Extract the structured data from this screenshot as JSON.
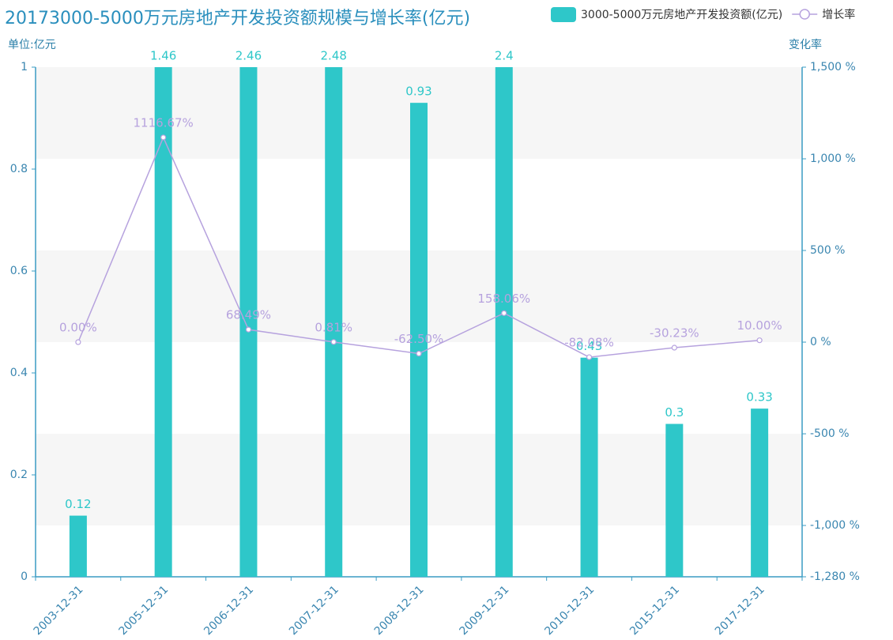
{
  "chart_data": {
    "type": "bar",
    "title": "20173000-5000万元房地产开发投资额规模与增长率(亿元)",
    "y_label": "单位:亿元",
    "y2_label": "变化率",
    "categories": [
      "2003-12-31",
      "2005-12-31",
      "2006-12-31",
      "2007-12-31",
      "2008-12-31",
      "2009-12-31",
      "2010-12-31",
      "2015-12-31",
      "2017-12-31"
    ],
    "series": [
      {
        "name": "3000-5000万元房地产开发投资额(亿元)",
        "type": "bar",
        "color": "#2ec7c9",
        "values": [
          0.12,
          1.46,
          2.46,
          2.48,
          0.93,
          2.4,
          0.43,
          0.3,
          0.33
        ]
      },
      {
        "name": "增长率",
        "type": "line",
        "axis": "y2",
        "color": "#b6a2de",
        "values": [
          0,
          1116.67,
          68.49,
          0.81,
          -62.5,
          158.06,
          -82.08,
          -30.23,
          10
        ],
        "value_labels": [
          "0.00%",
          "1116.67%",
          "68.49%",
          "0.81%",
          "-62.50%",
          "158.06%",
          "-82.08%",
          "-30.23%",
          "10.00%"
        ]
      }
    ],
    "ylim": [
      0,
      1
    ],
    "yticks": [
      0,
      0.2,
      0.4,
      0.6,
      0.8,
      1
    ],
    "y2lim": [
      -1280,
      1500
    ],
    "y2ticks": [
      {
        "value": -1280,
        "label": "-1,280 %"
      },
      {
        "value": -1000,
        "label": "-1,000 %"
      },
      {
        "value": -500,
        "label": "-500 %"
      },
      {
        "value": 0,
        "label": "0 %"
      },
      {
        "value": 500,
        "label": "500 %"
      },
      {
        "value": 1000,
        "label": "1,000 %"
      },
      {
        "value": 1500,
        "label": "1,500 %"
      }
    ],
    "legend": "top-right"
  }
}
